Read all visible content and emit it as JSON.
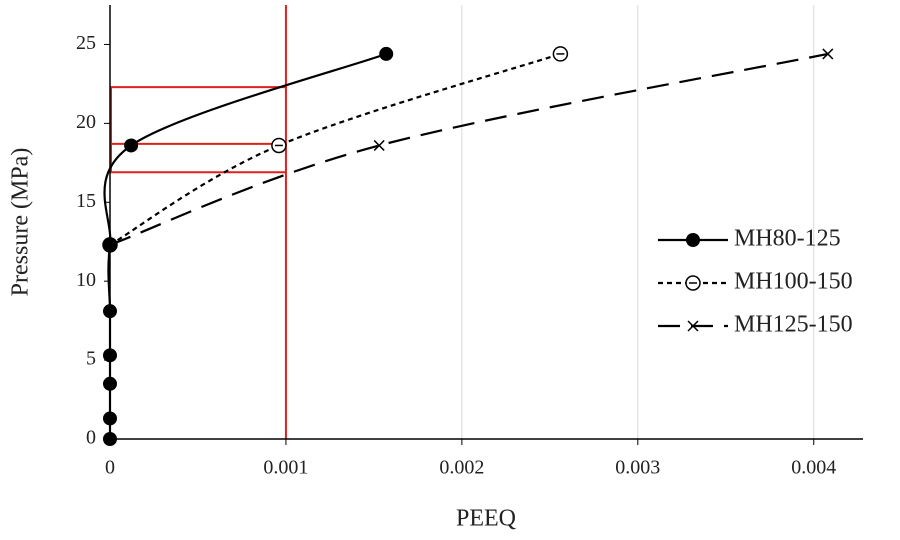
{
  "chart_data": {
    "type": "line",
    "x_label": "PEEQ",
    "y_label": "Pressure (MPa)",
    "xlim": [
      0,
      0.00428
    ],
    "ylim": [
      0,
      27.5
    ],
    "xticks": [
      0,
      0.001,
      0.002,
      0.003,
      0.004
    ],
    "yticks": [
      0,
      5,
      10,
      15,
      20,
      25
    ],
    "grid": "x",
    "legend": "right",
    "series": [
      {
        "name": "MH80-125",
        "color": "#000000",
        "line": "solid",
        "marker": "filled-circle",
        "x": [
          0,
          0,
          0,
          0,
          0,
          0,
          0.00012,
          0.00157
        ],
        "values": [
          0,
          1.3,
          3.5,
          5.3,
          8.1,
          12.3,
          18.6,
          24.4
        ]
      },
      {
        "name": "MH100-150",
        "color": "#000000",
        "line": "dotted",
        "marker": "open-circle",
        "x": [
          0,
          0.00096,
          0.00256
        ],
        "values": [
          12.3,
          18.6,
          24.4
        ]
      },
      {
        "name": "MH125-150",
        "color": "#000000",
        "line": "dashed",
        "marker": "x",
        "x": [
          0,
          0.00153,
          0.00408
        ],
        "values": [
          12.3,
          18.6,
          24.4
        ]
      }
    ],
    "reference_lines": {
      "color": "#e0201b",
      "x": 0.001,
      "y": [
        22.3,
        18.7,
        16.9
      ]
    }
  }
}
